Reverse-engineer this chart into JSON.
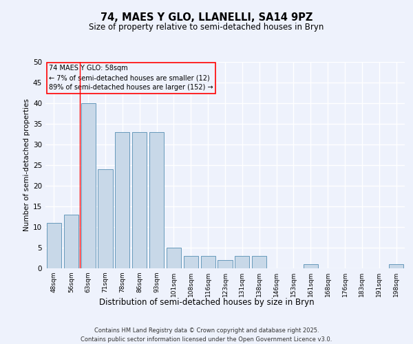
{
  "title": "74, MAES Y GLO, LLANELLI, SA14 9PZ",
  "subtitle": "Size of property relative to semi-detached houses in Bryn",
  "xlabel": "Distribution of semi-detached houses by size in Bryn",
  "ylabel": "Number of semi-detached properties",
  "categories": [
    "48sqm",
    "56sqm",
    "63sqm",
    "71sqm",
    "78sqm",
    "86sqm",
    "93sqm",
    "101sqm",
    "108sqm",
    "116sqm",
    "123sqm",
    "131sqm",
    "138sqm",
    "146sqm",
    "153sqm",
    "161sqm",
    "168sqm",
    "176sqm",
    "183sqm",
    "191sqm",
    "198sqm"
  ],
  "values": [
    11,
    13,
    40,
    24,
    33,
    33,
    33,
    5,
    3,
    3,
    2,
    3,
    3,
    0,
    0,
    1,
    0,
    0,
    0,
    0,
    1
  ],
  "bar_color": "#c8d8e8",
  "bar_edge_color": "#6699bb",
  "red_line_x": 1.5,
  "annotation_title": "74 MAES Y GLO: 58sqm",
  "annotation_line1": "← 7% of semi-detached houses are smaller (12)",
  "annotation_line2": "89% of semi-detached houses are larger (152) →",
  "ylim": [
    0,
    50
  ],
  "yticks": [
    0,
    5,
    10,
    15,
    20,
    25,
    30,
    35,
    40,
    45,
    50
  ],
  "footer_line1": "Contains HM Land Registry data © Crown copyright and database right 2025.",
  "footer_line2": "Contains public sector information licensed under the Open Government Licence v3.0.",
  "background_color": "#eef2fc",
  "grid_color": "#ffffff"
}
